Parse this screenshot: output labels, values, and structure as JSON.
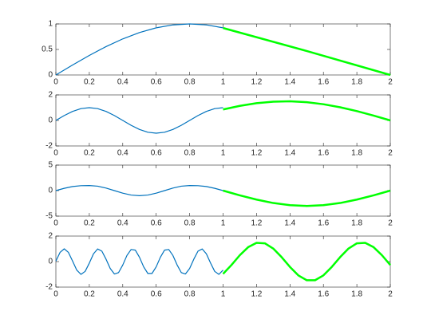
{
  "chart_data": [
    {
      "type": "line",
      "xlim": [
        0,
        2
      ],
      "ylim": [
        0,
        1
      ],
      "xticks": [
        0,
        0.2,
        0.4,
        0.6,
        0.8,
        1,
        1.2,
        1.4,
        1.6,
        1.8,
        2
      ],
      "yticks": [
        0,
        0.5,
        1
      ],
      "series": [
        {
          "color": "#0072bd",
          "linewidth": 1.2,
          "x": [
            0,
            0.1,
            0.2,
            0.3,
            0.4,
            0.5,
            0.6,
            0.7,
            0.8,
            0.9,
            1
          ],
          "values": [
            0,
            0.195,
            0.383,
            0.556,
            0.707,
            0.831,
            0.924,
            0.981,
            1,
            0.981,
            0.924
          ]
        },
        {
          "color": "#00ff00",
          "linewidth": 2.5,
          "x": [
            1,
            1.5,
            2
          ],
          "values": [
            0.92,
            0.47,
            0
          ]
        }
      ]
    },
    {
      "type": "line",
      "xlim": [
        0,
        2
      ],
      "ylim": [
        -2,
        2
      ],
      "xticks": [
        0,
        0.2,
        0.4,
        0.6,
        0.8,
        1,
        1.2,
        1.4,
        1.6,
        1.8,
        2
      ],
      "yticks": [
        -2,
        0,
        2
      ],
      "series": [
        {
          "color": "#0072bd",
          "linewidth": 1.2,
          "x": [
            0,
            0.05,
            0.1,
            0.15,
            0.2,
            0.25,
            0.3,
            0.35,
            0.4,
            0.45,
            0.5,
            0.55,
            0.6,
            0.65,
            0.7,
            0.75,
            0.8,
            0.85,
            0.9,
            0.95,
            1
          ],
          "values": [
            0,
            0.383,
            0.707,
            0.924,
            1,
            0.924,
            0.707,
            0.383,
            0,
            -0.383,
            -0.707,
            -0.924,
            -1,
            -0.924,
            -0.707,
            -0.383,
            0,
            0.383,
            0.707,
            0.924,
            1
          ]
        },
        {
          "color": "#00ff00",
          "linewidth": 2.5,
          "x": [
            1,
            1.1,
            1.2,
            1.3,
            1.4,
            1.5,
            1.6,
            1.7,
            1.8,
            1.9,
            2
          ],
          "values": [
            0.86,
            1.14,
            1.35,
            1.47,
            1.5,
            1.43,
            1.27,
            1.03,
            0.73,
            0.38,
            0
          ]
        }
      ]
    },
    {
      "type": "line",
      "xlim": [
        0,
        2
      ],
      "ylim": [
        -5,
        5
      ],
      "xticks": [
        0,
        0.2,
        0.4,
        0.6,
        0.8,
        1,
        1.2,
        1.4,
        1.6,
        1.8,
        2
      ],
      "yticks": [
        -5,
        0,
        5
      ],
      "series": [
        {
          "color": "#0072bd",
          "linewidth": 1.2,
          "x": [
            0,
            0.05,
            0.1,
            0.15,
            0.2,
            0.25,
            0.3,
            0.35,
            0.4,
            0.45,
            0.5,
            0.55,
            0.6,
            0.65,
            0.7,
            0.75,
            0.8,
            0.85,
            0.9,
            0.95,
            1
          ],
          "values": [
            0,
            0.45,
            0.8,
            0.97,
            1,
            0.87,
            0.5,
            0,
            -0.5,
            -0.87,
            -1,
            -0.87,
            -0.5,
            0,
            0.5,
            0.87,
            1,
            0.97,
            0.8,
            0.45,
            0
          ]
        },
        {
          "color": "#00ff00",
          "linewidth": 2.5,
          "x": [
            1,
            1.1,
            1.2,
            1.3,
            1.4,
            1.5,
            1.6,
            1.7,
            1.8,
            1.9,
            2
          ],
          "values": [
            0,
            -0.93,
            -1.76,
            -2.43,
            -2.85,
            -3,
            -2.85,
            -2.43,
            -1.76,
            -0.93,
            0
          ]
        }
      ]
    },
    {
      "type": "line",
      "xlim": [
        0,
        2
      ],
      "ylim": [
        -2,
        2
      ],
      "xticks": [
        0,
        0.2,
        0.4,
        0.6,
        0.8,
        1,
        1.2,
        1.4,
        1.6,
        1.8,
        2
      ],
      "yticks": [
        -2,
        0,
        2
      ],
      "series": [
        {
          "color": "#0072bd",
          "linewidth": 1.2,
          "x": [
            0,
            0.025,
            0.05,
            0.075,
            0.1,
            0.125,
            0.15,
            0.175,
            0.2,
            0.225,
            0.25,
            0.275,
            0.3,
            0.325,
            0.35,
            0.375,
            0.4,
            0.425,
            0.45,
            0.475,
            0.5,
            0.525,
            0.55,
            0.575,
            0.6,
            0.625,
            0.65,
            0.675,
            0.7,
            0.725,
            0.75,
            0.775,
            0.8,
            0.825,
            0.85,
            0.875,
            0.9,
            0.925,
            0.95,
            0.975,
            1
          ],
          "values": [
            0.04,
            0.72,
            1,
            0.72,
            0.04,
            -0.67,
            -1,
            -0.77,
            -0.12,
            0.61,
            0.99,
            0.82,
            0.19,
            -0.54,
            -0.97,
            -0.86,
            -0.27,
            0.48,
            0.95,
            0.9,
            0.34,
            -0.41,
            -0.93,
            -0.93,
            -0.41,
            0.34,
            0.9,
            0.95,
            0.48,
            -0.26,
            -0.86,
            -0.97,
            -0.54,
            0.19,
            0.82,
            0.99,
            0.61,
            -0.11,
            -0.77,
            -1,
            -0.67
          ]
        },
        {
          "color": "#00ff00",
          "linewidth": 2.5,
          "x": [
            1,
            1.05,
            1.1,
            1.15,
            1.2,
            1.25,
            1.3,
            1.35,
            1.4,
            1.45,
            1.5,
            1.55,
            1.6,
            1.65,
            1.7,
            1.75,
            1.8,
            1.85,
            1.9,
            1.95,
            2
          ],
          "values": [
            -0.96,
            -0.27,
            0.5,
            1.13,
            1.47,
            1.43,
            1.02,
            0.35,
            -0.42,
            -1.08,
            -1.46,
            -1.46,
            -1.08,
            -0.42,
            0.35,
            1.02,
            1.43,
            1.47,
            1.13,
            0.5,
            -0.27
          ]
        }
      ]
    }
  ]
}
